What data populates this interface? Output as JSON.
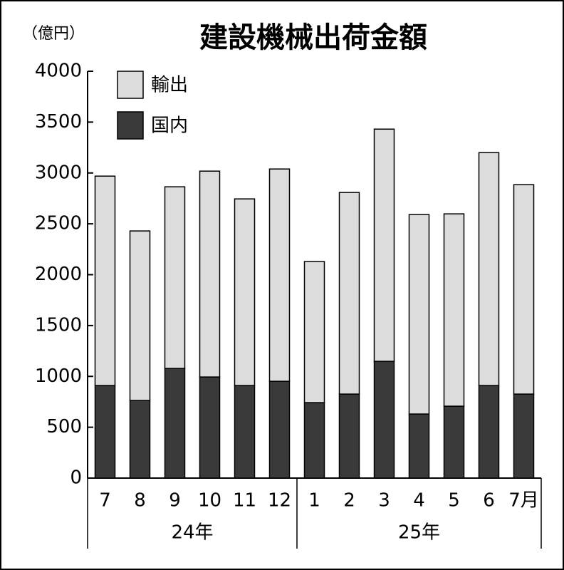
{
  "chart_data": {
    "type": "stacked_bar",
    "title": "建設機械出荷金額",
    "y_unit": "（億円）",
    "categories": [
      "7",
      "8",
      "9",
      "10",
      "11",
      "12",
      "1",
      "2",
      "3",
      "4",
      "5",
      "6",
      "7月"
    ],
    "x_groups": [
      "24年",
      "25年"
    ],
    "series": [
      {
        "name": "国内",
        "color": "#3a3a3a",
        "values": [
          910,
          763,
          1078,
          994,
          910,
          952,
          742,
          826,
          1148,
          630,
          707,
          910,
          826
        ]
      },
      {
        "name": "輸出",
        "color": "#dcdcdc",
        "values": [
          2059,
          1667,
          1786,
          2024,
          1835,
          2087,
          1387,
          1982,
          2283,
          1961,
          1891,
          2290,
          2059
        ]
      }
    ],
    "ylim": [
      0,
      4000
    ],
    "yticks": [
      0,
      500,
      1000,
      1500,
      2000,
      2500,
      3000,
      3500,
      4000
    ],
    "legend": "top-left"
  }
}
